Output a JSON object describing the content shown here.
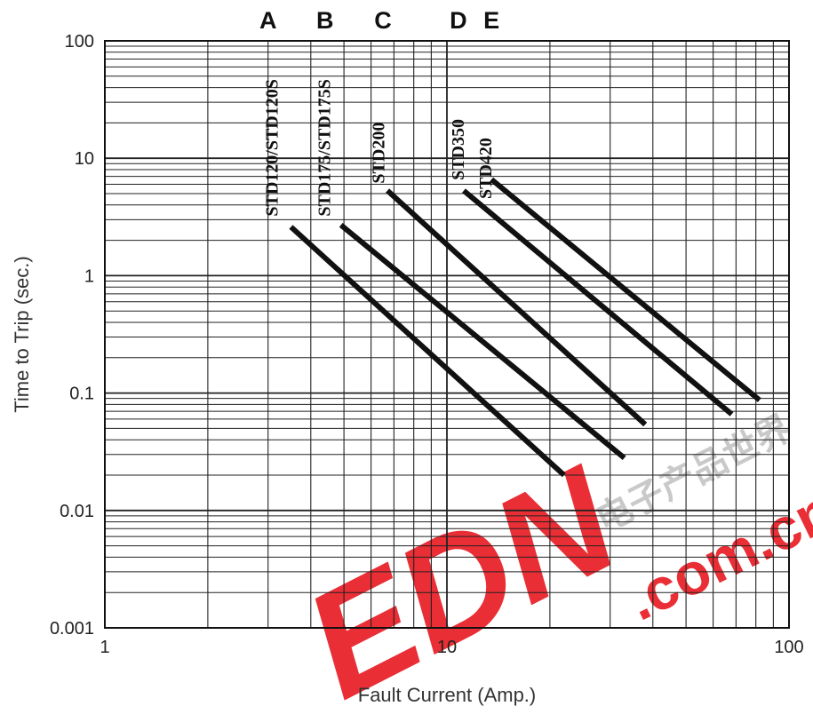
{
  "chart_data": {
    "type": "line",
    "x_scale": "log",
    "y_scale": "log",
    "xlim": [
      1,
      100
    ],
    "ylim": [
      0.001,
      100
    ],
    "grid": true,
    "xlabel": "Fault Current (Amp.)",
    "ylabel": "Time to Trip (sec.)",
    "x_ticks": [
      {
        "value": 1,
        "label": "1"
      },
      {
        "value": 10,
        "label": "10"
      },
      {
        "value": 100,
        "label": "100"
      }
    ],
    "y_ticks": [
      {
        "value": 100,
        "label": "100"
      },
      {
        "value": 10,
        "label": "10"
      },
      {
        "value": 1,
        "label": "1"
      },
      {
        "value": 0.1,
        "label": "0.1"
      },
      {
        "value": 0.01,
        "label": "0.01"
      },
      {
        "value": 0.001,
        "label": "0.001"
      }
    ],
    "series": [
      {
        "name": "STD120/STD120S",
        "letter": "A",
        "letter_x": 3,
        "label_x": 3.2,
        "label_y": 3.2,
        "x": [
          3.5,
          22
        ],
        "y": [
          2.6,
          0.02
        ]
      },
      {
        "name": "STD175/STD175S",
        "letter": "B",
        "letter_x": 4.4,
        "label_x": 4.55,
        "label_y": 3.2,
        "x": [
          4.9,
          33
        ],
        "y": [
          2.7,
          0.028
        ]
      },
      {
        "name": "STD200",
        "letter": "C",
        "letter_x": 6.5,
        "label_x": 6.55,
        "label_y": 6.1,
        "x": [
          6.7,
          38
        ],
        "y": [
          5.3,
          0.054
        ]
      },
      {
        "name": "STD350",
        "letter": "D",
        "letter_x": 10.8,
        "label_x": 11.2,
        "label_y": 6.5,
        "x": [
          11.2,
          68
        ],
        "y": [
          5.3,
          0.066
        ]
      },
      {
        "name": "STD420",
        "letter": "E",
        "letter_x": 13.5,
        "label_x": 13.5,
        "label_y": 4.5,
        "x": [
          13.5,
          82
        ],
        "y": [
          6.6,
          0.087
        ]
      }
    ],
    "line_color": "#111111"
  },
  "watermark": {
    "brand": "EDN",
    "domain": ".com.cn",
    "chinese": "电子产品世界",
    "color": "#e8232b"
  }
}
